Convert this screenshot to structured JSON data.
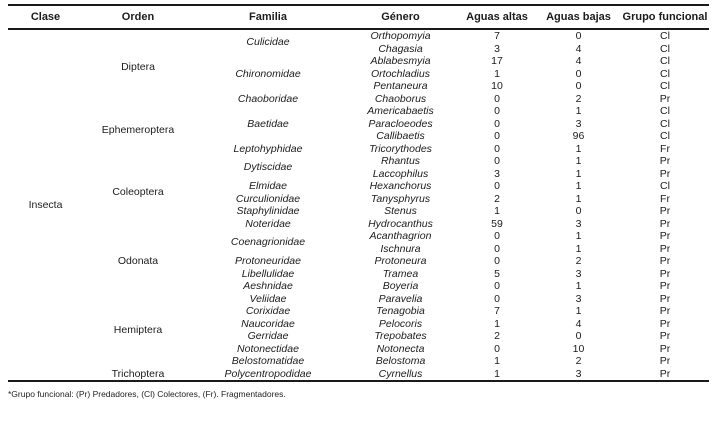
{
  "table": {
    "headers": [
      "Clase",
      "Orden",
      "Familia",
      "Género",
      "Aguas altas",
      "Aguas bajas",
      "Grupo funcional"
    ],
    "footnote": "*Grupo funcional: (Pr) Predadores, (Cl) Colectores, (Fr). Fragmentadores.",
    "classes": [
      {
        "clase": "Insecta",
        "orders": [
          {
            "orden": "Diptera",
            "families": [
              {
                "familia": "Culicidae",
                "genera": [
                  {
                    "genero": "Orthopomyia",
                    "aguas_altas": "7",
                    "aguas_bajas": "0",
                    "grupo": "Cl"
                  },
                  {
                    "genero": "Chagasia",
                    "aguas_altas": "3",
                    "aguas_bajas": "4",
                    "grupo": "Cl"
                  }
                ]
              },
              {
                "familia": "Chironomidae",
                "genera": [
                  {
                    "genero": "Ablabesmyia",
                    "aguas_altas": "17",
                    "aguas_bajas": "4",
                    "grupo": "Cl"
                  },
                  {
                    "genero": "Ortochladius",
                    "aguas_altas": "1",
                    "aguas_bajas": "0",
                    "grupo": "Cl"
                  },
                  {
                    "genero": "Pentaneura",
                    "aguas_altas": "10",
                    "aguas_bajas": "0",
                    "grupo": "Cl"
                  }
                ]
              },
              {
                "familia": "Chaoboridae",
                "genera": [
                  {
                    "genero": "Chaoborus",
                    "aguas_altas": "0",
                    "aguas_bajas": "2",
                    "grupo": "Pr"
                  }
                ]
              }
            ]
          },
          {
            "orden": "Ephemeroptera",
            "families": [
              {
                "familia": "Baetidae",
                "genera": [
                  {
                    "genero": "Americabaetis",
                    "aguas_altas": "0",
                    "aguas_bajas": "1",
                    "grupo": "Cl"
                  },
                  {
                    "genero": "Paracloeodes",
                    "aguas_altas": "0",
                    "aguas_bajas": "3",
                    "grupo": "Cl"
                  },
                  {
                    "genero": "Callibaetis",
                    "aguas_altas": "0",
                    "aguas_bajas": "96",
                    "grupo": "Cl"
                  }
                ]
              },
              {
                "familia": "Leptohyphidae",
                "genera": [
                  {
                    "genero": "Tricorythodes",
                    "aguas_altas": "0",
                    "aguas_bajas": "1",
                    "grupo": "Fr"
                  }
                ]
              }
            ]
          },
          {
            "orden": "Coleoptera",
            "families": [
              {
                "familia": "Dytiscidae",
                "genera": [
                  {
                    "genero": "Rhantus",
                    "aguas_altas": "0",
                    "aguas_bajas": "1",
                    "grupo": "Pr"
                  },
                  {
                    "genero": "Laccophilus",
                    "aguas_altas": "3",
                    "aguas_bajas": "1",
                    "grupo": "Pr"
                  }
                ]
              },
              {
                "familia": "Elmidae",
                "genera": [
                  {
                    "genero": "Hexanchorus",
                    "aguas_altas": "0",
                    "aguas_bajas": "1",
                    "grupo": "Cl"
                  }
                ]
              },
              {
                "familia": "Curculionidae",
                "genera": [
                  {
                    "genero": "Tanysphyrus",
                    "aguas_altas": "2",
                    "aguas_bajas": "1",
                    "grupo": "Fr"
                  }
                ]
              },
              {
                "familia": "Staphylinidae",
                "genera": [
                  {
                    "genero": "Stenus",
                    "aguas_altas": "1",
                    "aguas_bajas": "0",
                    "grupo": "Pr"
                  }
                ]
              },
              {
                "familia": "Noteridae",
                "genera": [
                  {
                    "genero": "Hydrocanthus",
                    "aguas_altas": "59",
                    "aguas_bajas": "3",
                    "grupo": "Pr"
                  }
                ]
              }
            ]
          },
          {
            "orden": "Odonata",
            "families": [
              {
                "familia": "Coenagrionidae",
                "genera": [
                  {
                    "genero": "Acanthagrion",
                    "aguas_altas": "0",
                    "aguas_bajas": "1",
                    "grupo": "Pr"
                  },
                  {
                    "genero": "Ischnura",
                    "aguas_altas": "0",
                    "aguas_bajas": "1",
                    "grupo": "Pr"
                  }
                ]
              },
              {
                "familia": "Protoneuridae",
                "genera": [
                  {
                    "genero": "Protoneura",
                    "aguas_altas": "0",
                    "aguas_bajas": "2",
                    "grupo": "Pr"
                  }
                ]
              },
              {
                "familia": "Libellulidae",
                "genera": [
                  {
                    "genero": "Tramea",
                    "aguas_altas": "5",
                    "aguas_bajas": "3",
                    "grupo": "Pr"
                  }
                ]
              },
              {
                "familia": "Aeshnidae",
                "genera": [
                  {
                    "genero": "Boyeria",
                    "aguas_altas": "0",
                    "aguas_bajas": "1",
                    "grupo": "Pr"
                  }
                ]
              }
            ]
          },
          {
            "orden": "Hemiptera",
            "families": [
              {
                "familia": "Veliidae",
                "genera": [
                  {
                    "genero": "Paravelia",
                    "aguas_altas": "0",
                    "aguas_bajas": "3",
                    "grupo": "Pr"
                  }
                ]
              },
              {
                "familia": "Corixidae",
                "genera": [
                  {
                    "genero": "Tenagobia",
                    "aguas_altas": "7",
                    "aguas_bajas": "1",
                    "grupo": "Pr"
                  }
                ]
              },
              {
                "familia": "Naucoridae",
                "genera": [
                  {
                    "genero": "Pelocoris",
                    "aguas_altas": "1",
                    "aguas_bajas": "4",
                    "grupo": "Pr"
                  }
                ]
              },
              {
                "familia": "Gerridae",
                "genera": [
                  {
                    "genero": "Trepobates",
                    "aguas_altas": "2",
                    "aguas_bajas": "0",
                    "grupo": "Pr"
                  }
                ]
              },
              {
                "familia": "Notonectidae",
                "genera": [
                  {
                    "genero": "Notonecta",
                    "aguas_altas": "0",
                    "aguas_bajas": "10",
                    "grupo": "Pr"
                  }
                ]
              },
              {
                "familia": "Belostomatidae",
                "genera": [
                  {
                    "genero": "Belostoma",
                    "aguas_altas": "1",
                    "aguas_bajas": "2",
                    "grupo": "Pr"
                  }
                ]
              }
            ]
          },
          {
            "orden": "Trichoptera",
            "families": [
              {
                "familia": "Polycentropodidae",
                "genera": [
                  {
                    "genero": "Cyrnellus",
                    "aguas_altas": "1",
                    "aguas_bajas": "3",
                    "grupo": "Pr"
                  }
                ]
              }
            ]
          }
        ]
      }
    ]
  }
}
